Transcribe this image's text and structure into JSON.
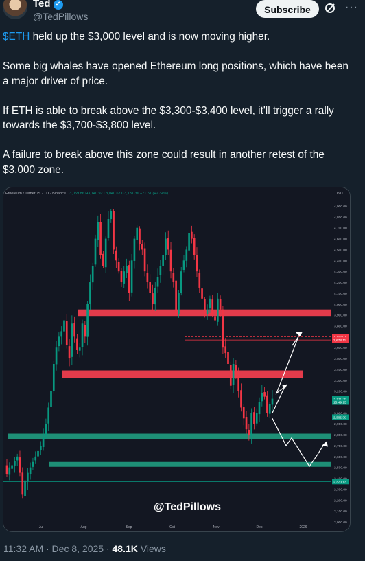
{
  "author": {
    "name": "Ted",
    "handle": "@TedPillows"
  },
  "header": {
    "subscribe_label": "Subscribe"
  },
  "tweet": {
    "cashtag": "$ETH",
    "p1_rest": " held up the $3,000 level and is now moving higher.",
    "p2": "Some big whales have opened Ethereum long positions, which have been a major driver of price.",
    "p3": "If ETH is able to break above the $3,300-$3,400 level, it'll trigger a rally towards the $3,700-$3,800 level.",
    "p4": "A failure to break above this zone could result in another retest of the $3,000 zone."
  },
  "chart": {
    "header": "Ethereum / TetherUS · 1D · Binance",
    "ohlc": "O3,059.86  H3,140.92  L3,040.67  C3,131.36  +71.51 (+2.34%)",
    "currency": "USDT",
    "watermark": "@TedPillows",
    "price_labels": [
      "4,900.00",
      "4,800.00",
      "4,700.00",
      "4,600.00",
      "4,500.00",
      "4,400.00",
      "4,300.00",
      "4,200.00",
      "4,100.00",
      "4,000.00",
      "3,900.00",
      "3,800.00",
      "3,700.00",
      "3,600.00",
      "3,500.00",
      "3,400.00",
      "3,300.00",
      "3,200.00",
      "3,100.00",
      "3,000.00",
      "2,900.00",
      "2,800.00",
      "2,700.00",
      "2,600.00",
      "2,500.00",
      "2,400.00",
      "2,300.00",
      "2,200.00",
      "2,100.00",
      "2,000.00"
    ],
    "time_labels": [
      "Jul",
      "Aug",
      "Sep",
      "Oct",
      "Nov",
      "Dec",
      "2026"
    ],
    "badges": [
      {
        "text": "3,702.07",
        "price": 3702,
        "color": "#f23645"
      },
      {
        "text": "3,678.11",
        "price": 3670,
        "color": "#f23645"
      },
      {
        "text": "3,131.36",
        "price": 3131,
        "color": "#089981"
      },
      {
        "text": "15:49:15",
        "price": 3100,
        "color": "#089981"
      },
      {
        "text": "2,962.38",
        "price": 2962,
        "color": "#089981"
      },
      {
        "text": "2,370.13",
        "price": 2370,
        "color": "#089981"
      }
    ],
    "colors": {
      "up": "#089981",
      "down": "#f23645",
      "resistance": "#e33b4b",
      "support": "#1e8f76"
    }
  },
  "chart_data": {
    "type": "candlestick",
    "title": "Ethereum / TetherUS · 1D · Binance",
    "ylabel": "USDT",
    "ylim": [
      2000,
      4950
    ],
    "x": [
      "Jul",
      "Aug",
      "Sep",
      "Oct",
      "Nov",
      "Dec",
      "2026"
    ],
    "resistance_zones": [
      [
        3890,
        3950
      ],
      [
        3320,
        3390
      ]
    ],
    "support_zones": [
      [
        2760,
        2810
      ],
      [
        2510,
        2550
      ]
    ],
    "levels": [
      3700,
      3670,
      2962,
      2370
    ],
    "path_close": [
      2440,
      2500,
      2520,
      2560,
      2600,
      2450,
      2250,
      2380,
      2450,
      2500,
      2550,
      2600,
      2650,
      2700,
      2780,
      2900,
      3050,
      3200,
      3450,
      3600,
      3700,
      3750,
      3850,
      3620,
      3500,
      3820,
      3700,
      3580,
      3600,
      3820,
      3700,
      4000,
      4200,
      4350,
      4600,
      4750,
      4450,
      4350,
      4600,
      4780,
      4850,
      4500,
      4400,
      4300,
      4200,
      4300,
      4350,
      4100,
      4400,
      4600,
      4700,
      4550,
      4500,
      4300,
      4200,
      4100,
      4000,
      4150,
      4250,
      4350,
      4450,
      4600,
      4500,
      4300,
      4200,
      3900,
      4100,
      4300,
      4400,
      4500,
      4650,
      4600,
      4450,
      4300,
      4150,
      4050,
      3900,
      3950,
      4050,
      3900,
      3850,
      4050,
      3950,
      3600,
      3550,
      3450,
      3250,
      3450,
      3350,
      3200,
      3050,
      2950,
      2850,
      2800,
      3000,
      2900,
      3000,
      3100,
      3180,
      3150,
      3000,
      3080,
      3131
    ]
  }
}
